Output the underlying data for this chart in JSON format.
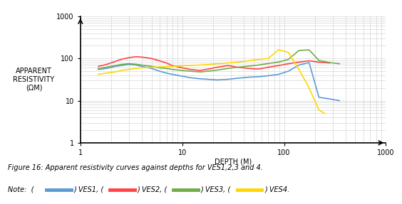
{
  "title": "",
  "xlabel": "DEPTH (M)",
  "ylabel": "APPARENT\nRESISTIVITY\n(ΩM)",
  "xlim": [
    1,
    1000
  ],
  "ylim": [
    1,
    1000
  ],
  "caption_line1": "Figure 16: Apparent resistivity curves against depths for VES1,2,3 and 4.",
  "colors": {
    "VES1": "#5B9BD5",
    "VES2": "#FF4444",
    "VES3": "#70AD47",
    "VES4": "#FFD700"
  },
  "VES1_x": [
    1.5,
    1.8,
    2.2,
    2.5,
    3.0,
    3.5,
    4.0,
    5.0,
    6.0,
    7.0,
    8.0,
    10.0,
    12.0,
    15.0,
    18.0,
    22.0,
    28.0,
    35.0,
    45.0,
    56.0,
    70.0,
    88.0,
    110.0,
    140.0,
    176.0,
    220.0,
    280.0,
    350.0
  ],
  "VES1_y": [
    55,
    58,
    65,
    68,
    72,
    70,
    65,
    58,
    50,
    45,
    42,
    38,
    35,
    33,
    32,
    31,
    32,
    34,
    36,
    37,
    39,
    42,
    50,
    70,
    80,
    12,
    11,
    10
  ],
  "VES2_x": [
    1.5,
    1.8,
    2.2,
    2.5,
    3.0,
    3.5,
    4.0,
    5.0,
    6.0,
    7.0,
    8.0,
    10.0,
    12.0,
    15.0,
    18.0,
    22.0,
    28.0,
    35.0,
    45.0,
    56.0,
    70.0,
    88.0,
    110.0,
    140.0,
    176.0,
    220.0,
    280.0
  ],
  "VES2_y": [
    65,
    72,
    85,
    95,
    105,
    110,
    108,
    100,
    88,
    78,
    68,
    60,
    55,
    52,
    56,
    62,
    68,
    62,
    58,
    56,
    62,
    68,
    75,
    82,
    88,
    82,
    78
  ],
  "VES3_x": [
    1.5,
    1.8,
    2.2,
    2.5,
    3.0,
    3.5,
    4.0,
    5.0,
    6.0,
    7.0,
    8.0,
    10.0,
    12.0,
    15.0,
    18.0,
    22.0,
    28.0,
    35.0,
    45.0,
    56.0,
    70.0,
    88.0,
    110.0,
    140.0,
    176.0,
    220.0,
    280.0,
    350.0
  ],
  "VES3_y": [
    58,
    62,
    68,
    72,
    75,
    73,
    70,
    65,
    60,
    58,
    55,
    52,
    50,
    48,
    50,
    53,
    58,
    62,
    66,
    70,
    76,
    82,
    95,
    155,
    160,
    90,
    80,
    75
  ],
  "VES4_x": [
    1.5,
    1.8,
    2.2,
    2.5,
    3.0,
    3.5,
    4.0,
    5.0,
    6.0,
    7.0,
    8.0,
    10.0,
    12.0,
    15.0,
    18.0,
    22.0,
    28.0,
    35.0,
    45.0,
    56.0,
    70.0,
    88.0,
    110.0,
    140.0,
    176.0,
    220.0,
    250.0
  ],
  "VES4_y": [
    42,
    45,
    48,
    52,
    55,
    58,
    60,
    62,
    63,
    64,
    65,
    67,
    68,
    70,
    72,
    75,
    78,
    82,
    88,
    95,
    100,
    160,
    140,
    55,
    20,
    6,
    5
  ],
  "background_color": "#ffffff",
  "grid_color": "#cccccc",
  "line_width": 1.2
}
